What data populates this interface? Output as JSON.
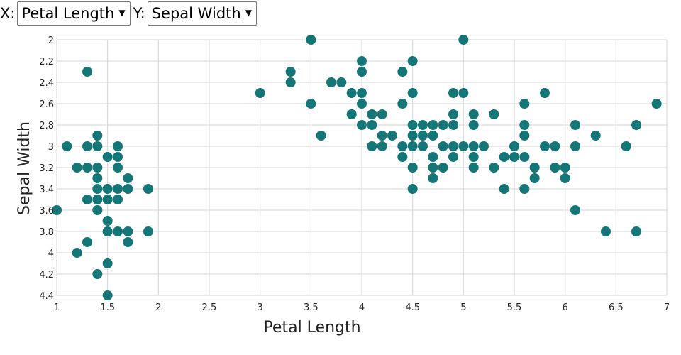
{
  "controls": {
    "x_label": "X:",
    "x_selected": "Petal Length",
    "y_label": "Y:",
    "y_selected": "Sepal Width"
  },
  "colors": {
    "point": "#147676",
    "grid": "#d4d4d4"
  },
  "chart_data": {
    "type": "scatter",
    "xlabel": "Petal Length",
    "ylabel": "Sepal Width",
    "xlim": [
      1,
      7
    ],
    "ylim": [
      2,
      4.4
    ],
    "y_inverted": true,
    "grid": true,
    "x_ticks": [
      "1",
      "1.5",
      "2",
      "2.5",
      "3",
      "3.5",
      "4",
      "4.5",
      "5",
      "5.5",
      "6",
      "6.5",
      "7"
    ],
    "y_ticks": [
      "2",
      "2.2",
      "2.4",
      "2.6",
      "2.8",
      "3",
      "3.2",
      "3.4",
      "3.6",
      "3.8",
      "4",
      "4.2",
      "4.4"
    ],
    "points": [
      [
        1.0,
        3.6
      ],
      [
        1.1,
        3.0
      ],
      [
        1.2,
        3.2
      ],
      [
        1.2,
        4.0
      ],
      [
        1.3,
        2.3
      ],
      [
        1.3,
        3.0
      ],
      [
        1.3,
        3.2
      ],
      [
        1.3,
        3.5
      ],
      [
        1.3,
        3.9
      ],
      [
        1.4,
        2.9
      ],
      [
        1.4,
        3.0
      ],
      [
        1.4,
        3.2
      ],
      [
        1.4,
        3.3
      ],
      [
        1.4,
        3.4
      ],
      [
        1.4,
        3.5
      ],
      [
        1.4,
        3.6
      ],
      [
        1.4,
        4.2
      ],
      [
        1.5,
        3.1
      ],
      [
        1.5,
        3.4
      ],
      [
        1.5,
        3.5
      ],
      [
        1.5,
        3.7
      ],
      [
        1.5,
        3.8
      ],
      [
        1.5,
        4.1
      ],
      [
        1.5,
        4.4
      ],
      [
        1.6,
        3.0
      ],
      [
        1.6,
        3.1
      ],
      [
        1.6,
        3.2
      ],
      [
        1.6,
        3.4
      ],
      [
        1.6,
        3.5
      ],
      [
        1.6,
        3.8
      ],
      [
        1.7,
        3.3
      ],
      [
        1.7,
        3.4
      ],
      [
        1.7,
        3.8
      ],
      [
        1.7,
        3.9
      ],
      [
        1.9,
        3.4
      ],
      [
        1.9,
        3.8
      ],
      [
        3.0,
        2.5
      ],
      [
        3.3,
        2.3
      ],
      [
        3.3,
        2.4
      ],
      [
        3.5,
        2.0
      ],
      [
        3.5,
        2.6
      ],
      [
        3.6,
        2.9
      ],
      [
        3.7,
        2.4
      ],
      [
        3.8,
        2.4
      ],
      [
        3.9,
        2.5
      ],
      [
        3.9,
        2.7
      ],
      [
        4.0,
        2.2
      ],
      [
        4.0,
        2.3
      ],
      [
        4.0,
        2.5
      ],
      [
        4.0,
        2.6
      ],
      [
        4.0,
        2.8
      ],
      [
        4.1,
        2.7
      ],
      [
        4.1,
        2.8
      ],
      [
        4.1,
        3.0
      ],
      [
        4.2,
        2.7
      ],
      [
        4.2,
        2.9
      ],
      [
        4.2,
        3.0
      ],
      [
        4.3,
        2.9
      ],
      [
        4.4,
        2.3
      ],
      [
        4.4,
        2.6
      ],
      [
        4.4,
        3.0
      ],
      [
        4.4,
        3.1
      ],
      [
        4.5,
        2.2
      ],
      [
        4.5,
        2.5
      ],
      [
        4.5,
        2.8
      ],
      [
        4.5,
        2.9
      ],
      [
        4.5,
        3.0
      ],
      [
        4.5,
        3.2
      ],
      [
        4.5,
        3.4
      ],
      [
        4.6,
        2.8
      ],
      [
        4.6,
        2.9
      ],
      [
        4.6,
        3.0
      ],
      [
        4.7,
        2.8
      ],
      [
        4.7,
        2.9
      ],
      [
        4.7,
        3.1
      ],
      [
        4.7,
        3.2
      ],
      [
        4.7,
        3.3
      ],
      [
        4.8,
        2.8
      ],
      [
        4.8,
        3.0
      ],
      [
        4.8,
        3.2
      ],
      [
        4.9,
        2.5
      ],
      [
        4.9,
        2.7
      ],
      [
        4.9,
        2.8
      ],
      [
        4.9,
        3.0
      ],
      [
        4.9,
        3.1
      ],
      [
        5.0,
        2.0
      ],
      [
        5.0,
        2.5
      ],
      [
        5.0,
        3.0
      ],
      [
        5.1,
        2.7
      ],
      [
        5.1,
        2.8
      ],
      [
        5.1,
        3.0
      ],
      [
        5.1,
        3.1
      ],
      [
        5.1,
        3.2
      ],
      [
        5.2,
        3.0
      ],
      [
        5.3,
        2.7
      ],
      [
        5.3,
        3.2
      ],
      [
        5.4,
        3.1
      ],
      [
        5.4,
        3.4
      ],
      [
        5.5,
        3.0
      ],
      [
        5.5,
        3.1
      ],
      [
        5.6,
        2.6
      ],
      [
        5.6,
        2.8
      ],
      [
        5.6,
        2.9
      ],
      [
        5.6,
        3.1
      ],
      [
        5.6,
        3.4
      ],
      [
        5.7,
        3.2
      ],
      [
        5.7,
        3.3
      ],
      [
        5.8,
        2.5
      ],
      [
        5.8,
        3.0
      ],
      [
        5.9,
        3.0
      ],
      [
        5.9,
        3.2
      ],
      [
        6.0,
        3.2
      ],
      [
        6.0,
        3.3
      ],
      [
        6.1,
        2.8
      ],
      [
        6.1,
        3.0
      ],
      [
        6.1,
        3.6
      ],
      [
        6.3,
        2.9
      ],
      [
        6.4,
        3.8
      ],
      [
        6.6,
        3.0
      ],
      [
        6.7,
        2.8
      ],
      [
        6.7,
        3.8
      ],
      [
        6.9,
        2.6
      ]
    ]
  }
}
